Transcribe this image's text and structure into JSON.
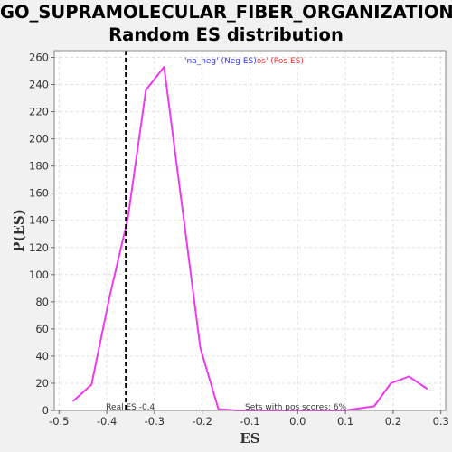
{
  "title_line1": "GO_SUPRAMOLECULAR_FIBER_ORGANIZATION:",
  "title_line2": "Random ES distribution",
  "chart_data": {
    "type": "line",
    "xlabel": "ES",
    "ylabel": "P(ES)",
    "xlim": [
      -0.51,
      0.31
    ],
    "ylim": [
      0,
      265
    ],
    "x_ticks": [
      -0.5,
      -0.4,
      -0.3,
      -0.2,
      -0.1,
      0.0,
      0.1,
      0.2,
      0.3
    ],
    "x_tick_labels": [
      "-0.5",
      "-0.4",
      "-0.3",
      "-0.2",
      "-0.1",
      "0.0",
      "0.1",
      "0.2",
      "0.3"
    ],
    "y_ticks": [
      0,
      20,
      40,
      60,
      80,
      100,
      120,
      140,
      160,
      180,
      200,
      220,
      240,
      260
    ],
    "grid": true,
    "legend_placement": "top-center",
    "legend": [
      {
        "text": "'na_neg' (Neg ES)",
        "color": "#3333ff"
      },
      {
        "text": "os' (Pos ES)",
        "color": "#ee3333"
      }
    ],
    "series": [
      {
        "color": "#ee3aee",
        "x": [
          -0.47,
          -0.432,
          -0.394,
          -0.356,
          -0.318,
          -0.28,
          -0.242,
          -0.204,
          -0.166,
          -0.128,
          -0.09,
          -0.052,
          -0.014,
          0.024,
          0.062,
          0.1,
          0.138,
          0.16,
          0.195,
          0.233,
          0.271
        ],
        "y": [
          7,
          19,
          84,
          141,
          236,
          253,
          150,
          46,
          1,
          0,
          0,
          0,
          0,
          0,
          0,
          0,
          2,
          3,
          20,
          25,
          16
        ]
      }
    ],
    "real_es": {
      "x": -0.36,
      "label": "Real ES -0.4",
      "color": "#000000"
    },
    "annotation": "Sets with pos scores: 6%"
  }
}
